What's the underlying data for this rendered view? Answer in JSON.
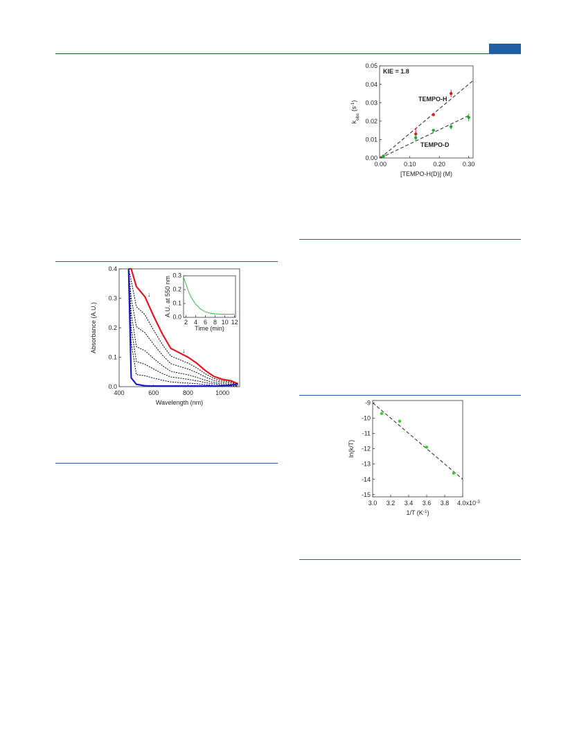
{
  "chart_data": [
    {
      "type": "scatter",
      "annotation": "KIE = 1.8",
      "y_label": {
        "symbol": "k",
        "sub": "obs",
        "unit": "  (s",
        "sup": "-1",
        "close": ")"
      },
      "x_label": "[TEMPO-H(D)]  (M)",
      "xlim": [
        -0.003,
        0.315
      ],
      "ylim": [
        0,
        0.05
      ],
      "xticks": [
        {
          "value": 0,
          "label": "0.00"
        },
        {
          "value": 0.1,
          "label": "0.10"
        },
        {
          "value": 0.2,
          "label": "0.20"
        },
        {
          "value": 0.3,
          "label": "0.30"
        }
      ],
      "yticks": [
        {
          "value": 0,
          "label": "0.00"
        },
        0.01,
        0.02,
        0.03,
        0.04,
        0.05
      ],
      "series": [
        {
          "name": "TEMPO-H",
          "color": "#e3171f",
          "x": [
            0.01,
            0.12,
            0.18,
            0.24
          ],
          "values": [
            0.001,
            0.013,
            0.0235,
            0.035
          ],
          "errors": [
            0.0005,
            0.003,
            0.0008,
            0.002
          ]
        },
        {
          "name": "TEMPO-D",
          "color": "#22a83a",
          "x": [
            0.01,
            0.12,
            0.18,
            0.24,
            0.3
          ],
          "values": [
            0.001,
            0.011,
            0.015,
            0.017,
            0.022
          ],
          "errors": [
            0.0005,
            0.002,
            0.0005,
            0.0015,
            0.002
          ]
        }
      ],
      "fit_lines": [
        {
          "x": [
            0,
            0.315
          ],
          "y": [
            0,
            0.042
          ]
        },
        {
          "x": [
            0,
            0.3
          ],
          "y": [
            0,
            0.023
          ]
        }
      ]
    },
    {
      "type": "line",
      "y_label": "Absorbance (A.U.)",
      "x_label": "Wavelength (nm)",
      "xlim": [
        400,
        1100
      ],
      "ylim": [
        0,
        0.4
      ],
      "xticks": [
        400,
        600,
        800,
        1000
      ],
      "yticks": [
        {
          "value": 0,
          "label": "0.0"
        },
        0.1,
        0.2,
        0.3,
        0.4
      ],
      "x": [
        455,
        470,
        500,
        550,
        600,
        650,
        700,
        750,
        800,
        850,
        900,
        950,
        1000,
        1050,
        1090
      ],
      "series": [
        {
          "color": "#000000",
          "dash": true,
          "values": [
            0.4,
            0.36,
            0.272,
            0.244,
            0.192,
            0.144,
            0.104,
            0.092,
            0.08,
            0.064,
            0.044,
            0.028,
            0.02,
            0.016,
            0.008
          ]
        },
        {
          "color": "#000000",
          "dash": true,
          "values": [
            0.4,
            0.3,
            0.204,
            0.183,
            0.144,
            0.108,
            0.078,
            0.069,
            0.06,
            0.048,
            0.033,
            0.021,
            0.015,
            0.012,
            0.006
          ]
        },
        {
          "color": "#000000",
          "dash": true,
          "values": [
            0.4,
            0.25,
            0.136,
            0.122,
            0.096,
            0.072,
            0.052,
            0.046,
            0.04,
            0.032,
            0.022,
            0.014,
            0.01,
            0.008,
            0.004
          ]
        },
        {
          "color": "#000000",
          "dash": true,
          "values": [
            0.4,
            0.2,
            0.085,
            0.076,
            0.06,
            0.045,
            0.033,
            0.029,
            0.025,
            0.02,
            0.014,
            0.009,
            0.006,
            0.005,
            0.003
          ]
        },
        {
          "color": "#000000",
          "dash": true,
          "values": [
            0.4,
            0.15,
            0.041,
            0.037,
            0.029,
            0.022,
            0.016,
            0.014,
            0.012,
            0.01,
            0.007,
            0.004,
            0.003,
            0.002,
            0.001
          ]
        },
        {
          "color": "#e3171f",
          "values": [
            0.4,
            0.4,
            0.34,
            0.305,
            0.24,
            0.18,
            0.13,
            0.115,
            0.1,
            0.08,
            0.055,
            0.035,
            0.025,
            0.02,
            0.01
          ]
        },
        {
          "color": "#1b1bc4",
          "values": [
            0.4,
            0.03,
            0.008,
            0.003,
            0.002,
            0.002,
            0.002,
            0.002,
            0.002,
            0.002,
            0.002,
            0.002,
            0.003,
            0.005,
            0.01
          ]
        }
      ]
    },
    {
      "type": "line",
      "y_label": "A.U. at 550 nm",
      "x_label": "Time (min)",
      "xlim": [
        1.5,
        12.2
      ],
      "ylim": [
        0,
        0.3
      ],
      "xticks": [
        2,
        4,
        6,
        8,
        10,
        12
      ],
      "yticks": [
        {
          "value": 0,
          "label": "0.0"
        },
        0.1,
        0.2,
        0.3
      ],
      "x": [
        1.5,
        2,
        2.5,
        3,
        3.5,
        4,
        5,
        6,
        7,
        8,
        10,
        12
      ],
      "series": [
        {
          "color": "#2fb52f",
          "values": [
            0.29,
            0.24,
            0.19,
            0.15,
            0.12,
            0.095,
            0.06,
            0.04,
            0.03,
            0.025,
            0.022,
            0.022
          ]
        }
      ]
    },
    {
      "type": "scatter",
      "y_label": "ln(k/T)",
      "x_label": {
        "main": "1/T (K",
        "sup": "-1",
        "close": ")"
      },
      "xlim": [
        3.0,
        4.0
      ],
      "ylim": [
        -15.15,
        -8.85
      ],
      "xticks": [
        {
          "value": 3.0,
          "label": "3.0"
        },
        3.2,
        3.4,
        3.6,
        3.8,
        {
          "value": 4.0,
          "label": "4.0x10"
        }
      ],
      "xtick_exponent": "-3",
      "yticks": [
        -9,
        -10,
        -11,
        -12,
        -13,
        -14,
        -15
      ],
      "series": [
        {
          "color": "#33cc33",
          "x": [
            3.1,
            3.3,
            3.6,
            3.9
          ],
          "values": [
            -9.7,
            -10.2,
            -11.9,
            -13.6
          ]
        }
      ],
      "fit_lines": [
        {
          "x": [
            3.0,
            4.0
          ],
          "y": [
            -9.0,
            -14.0
          ]
        }
      ]
    }
  ]
}
